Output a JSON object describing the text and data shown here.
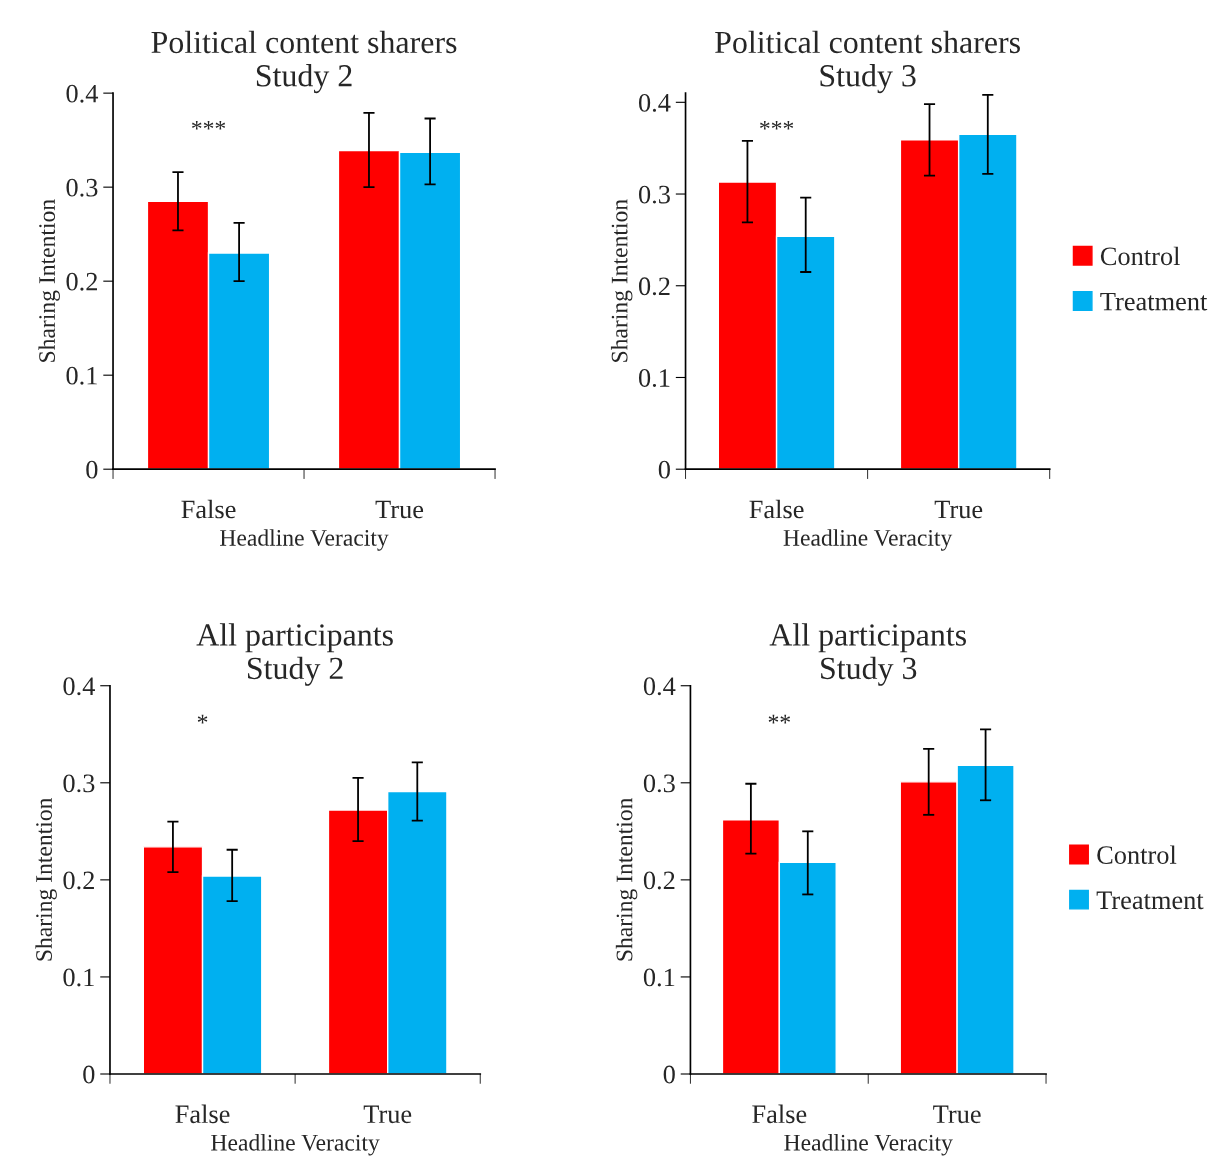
{
  "chart_data": [
    {
      "type": "bar",
      "title": "Political content sharers\nStudy 2",
      "xlabel": "Headline Veracity",
      "ylabel": "Sharing Intention",
      "categories": [
        "False",
        "True"
      ],
      "ylim": [
        0,
        0.4
      ],
      "yticks": [
        0,
        0.1,
        0.2,
        0.3,
        0.4
      ],
      "grid": false,
      "legend": false,
      "series": [
        {
          "color": "#ff0000",
          "values": [
            0.285,
            0.339
          ],
          "errors": [
            [
              0.254,
              0.316
            ],
            [
              0.3,
              0.379
            ]
          ]
        },
        {
          "color": "#00b0f0",
          "values": [
            0.23,
            0.337
          ],
          "errors": [
            [
              0.2,
              0.262
            ],
            [
              0.303,
              0.373
            ]
          ]
        }
      ],
      "annotations": [
        "***"
      ]
    },
    {
      "type": "bar",
      "title": "Political content sharers\nStudy 3",
      "xlabel": "Headline Veracity",
      "ylabel": "Sharing Intention",
      "categories": [
        "False",
        "True"
      ],
      "ylim": [
        0,
        0.41
      ],
      "yticks": [
        0,
        0.1,
        0.2,
        0.3,
        0.4
      ],
      "grid": false,
      "legend": "right",
      "series": [
        {
          "name": "Control",
          "color": "#ff0000",
          "values": [
            0.313,
            0.359
          ],
          "errors": [
            [
              0.269,
              0.358
            ],
            [
              0.32,
              0.398
            ]
          ]
        },
        {
          "name": "Treatment",
          "color": "#00b0f0",
          "values": [
            0.254,
            0.365
          ],
          "errors": [
            [
              0.215,
              0.296
            ],
            [
              0.322,
              0.408
            ]
          ]
        }
      ],
      "annotations": [
        "***"
      ]
    },
    {
      "type": "bar",
      "title": "All participants\nStudy 2",
      "xlabel": "Headline Veracity",
      "ylabel": "Sharing Intention",
      "categories": [
        "False",
        "True"
      ],
      "ylim": [
        0,
        0.4
      ],
      "yticks": [
        0,
        0.1,
        0.2,
        0.3,
        0.4
      ],
      "grid": false,
      "legend": false,
      "series": [
        {
          "color": "#ff0000",
          "values": [
            0.234,
            0.272
          ],
          "errors": [
            [
              0.208,
              0.26
            ],
            [
              0.24,
              0.305
            ]
          ]
        },
        {
          "color": "#00b0f0",
          "values": [
            0.204,
            0.291
          ],
          "errors": [
            [
              0.178,
              0.231
            ],
            [
              0.261,
              0.321
            ]
          ]
        }
      ],
      "annotations": [
        "*"
      ]
    },
    {
      "type": "bar",
      "title": "All participants\nStudy 3",
      "xlabel": "Headline Veracity",
      "ylabel": "Sharing Intention",
      "categories": [
        "False",
        "True"
      ],
      "ylim": [
        0,
        0.4
      ],
      "yticks": [
        0,
        0.1,
        0.2,
        0.3,
        0.4
      ],
      "grid": false,
      "legend": "right",
      "series": [
        {
          "name": "Control",
          "color": "#ff0000",
          "values": [
            0.262,
            0.301
          ],
          "errors": [
            [
              0.227,
              0.299
            ],
            [
              0.267,
              0.335
            ]
          ]
        },
        {
          "name": "Treatment",
          "color": "#00b0f0",
          "values": [
            0.218,
            0.318
          ],
          "errors": [
            [
              0.185,
              0.25
            ],
            [
              0.282,
              0.355
            ]
          ]
        }
      ],
      "annotations": [
        "**"
      ]
    }
  ]
}
